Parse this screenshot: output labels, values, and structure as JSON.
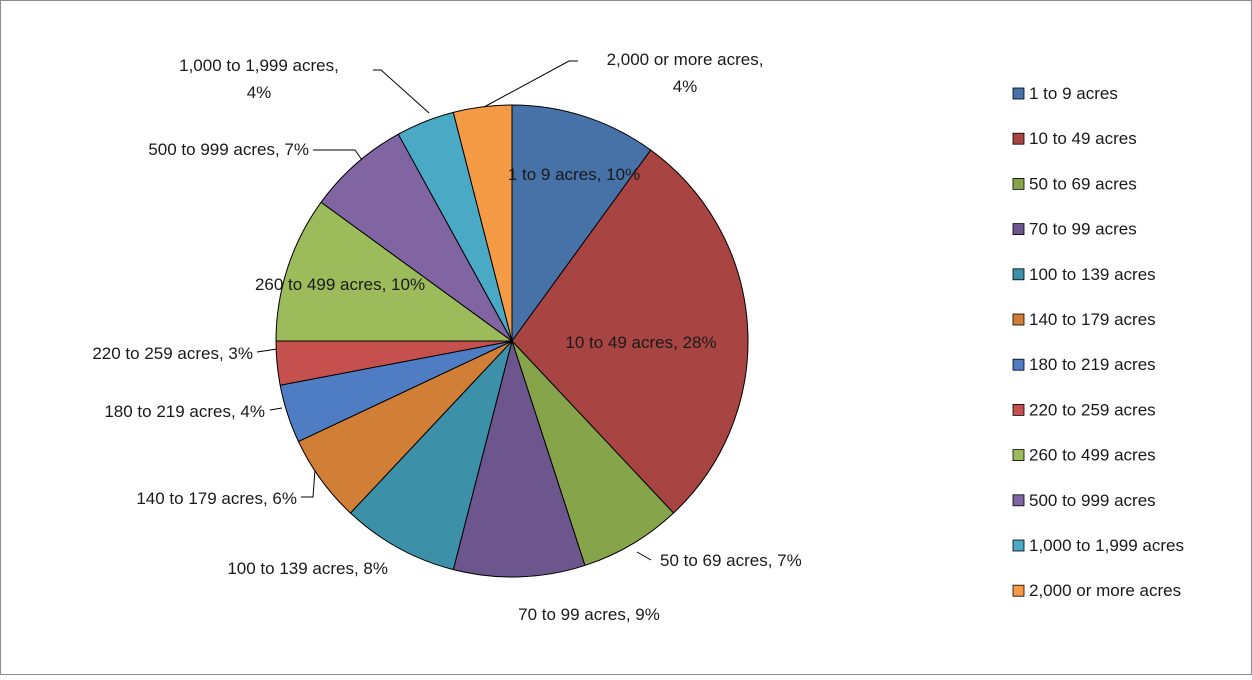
{
  "chart_data": {
    "type": "pie",
    "title": "",
    "categories": [
      "1 to 9 acres",
      "10 to 49 acres",
      "50 to 69 acres",
      "70 to 99 acres",
      "100 to 139 acres",
      "140 to 179 acres",
      "180 to 219 acres",
      "220 to 259 acres",
      "260 to 499 acres",
      "500 to 999 acres",
      "1,000 to 1,999 acres",
      "2,000 or more acres"
    ],
    "values": [
      10,
      28,
      7,
      9,
      8,
      6,
      4,
      3,
      10,
      7,
      4,
      4
    ],
    "data_labels": [
      "1 to 9 acres, 10%",
      "10 to 49 acres, 28%",
      "50 to 69 acres, 7%",
      "70 to 99 acres, 9%",
      "100 to 139 acres, 8%",
      "140 to 179 acres, 6%",
      "180 to 219 acres, 4%",
      "220 to 259 acres, 3%",
      "260 to 499 acres, 10%",
      "500 to 999 acres, 7%",
      [
        "1,000 to 1,999 acres,",
        "4%"
      ],
      [
        "2,000 or more acres,",
        "4%"
      ]
    ],
    "colors": [
      "#4672a8",
      "#a84542",
      "#86a44a",
      "#6d558e",
      "#3c90a8",
      "#d17e37",
      "#4f7dc4",
      "#c5504d",
      "#9cbb5a",
      "#8065a2",
      "#4aa9c5",
      "#f59a45"
    ],
    "legend_position": "right"
  }
}
